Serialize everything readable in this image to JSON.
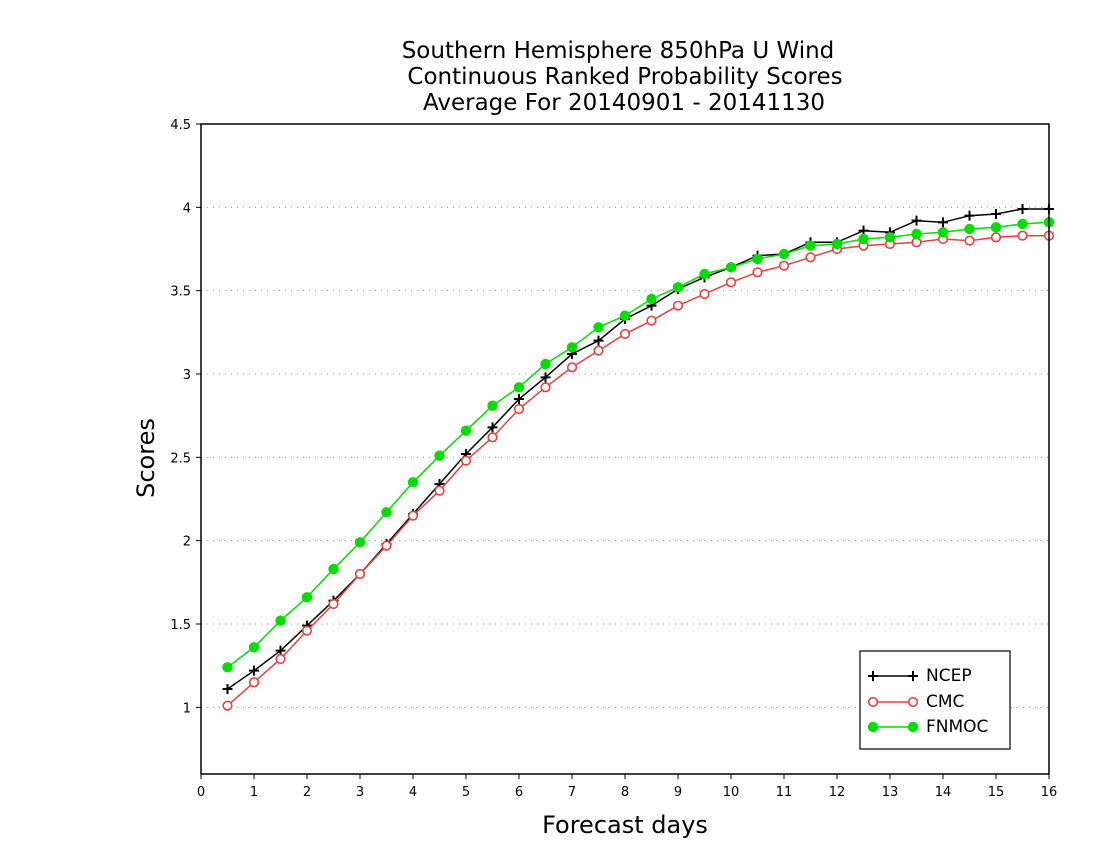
{
  "chart_data": {
    "type": "line",
    "title": [
      "Southern Hemisphere 850hPa U Wind",
      "Continuous Ranked Probability Scores",
      "Average For 20140901 - 20141130"
    ],
    "xlabel": "Forecast days",
    "ylabel": "Scores",
    "xlim": [
      0,
      16
    ],
    "ylim": [
      0.6,
      4.5
    ],
    "x_ticks": [
      "0",
      "1",
      "2",
      "3",
      "4",
      "5",
      "6",
      "7",
      "8",
      "9",
      "10",
      "11",
      "12",
      "13",
      "14",
      "15",
      "16"
    ],
    "y_ticks": [
      "1",
      "1.5",
      "2",
      "2.5",
      "3",
      "3.5",
      "4",
      "4.5"
    ],
    "grid": "horizontal dotted",
    "legend_position": "bottom-right",
    "x": [
      0.5,
      1,
      1.5,
      2,
      2.5,
      3,
      3.5,
      4,
      4.5,
      5,
      5.5,
      6,
      6.5,
      7,
      7.5,
      8,
      8.5,
      9,
      9.5,
      10,
      10.5,
      11,
      11.5,
      12,
      12.5,
      13,
      13.5,
      14,
      14.5,
      15,
      15.5,
      16
    ],
    "series": [
      {
        "name": "NCEP",
        "color": "#000000",
        "marker": "plus",
        "values": [
          1.11,
          1.22,
          1.34,
          1.49,
          1.64,
          1.8,
          1.98,
          2.16,
          2.34,
          2.52,
          2.68,
          2.85,
          2.98,
          3.12,
          3.2,
          3.33,
          3.41,
          3.51,
          3.58,
          3.64,
          3.71,
          3.72,
          3.79,
          3.79,
          3.86,
          3.85,
          3.92,
          3.91,
          3.95,
          3.96,
          3.99,
          3.99
        ]
      },
      {
        "name": "CMC",
        "color": "#e64040",
        "marker": "open-circle",
        "values": [
          1.01,
          1.15,
          1.29,
          1.46,
          1.62,
          1.8,
          1.97,
          2.15,
          2.3,
          2.48,
          2.62,
          2.79,
          2.92,
          3.04,
          3.14,
          3.24,
          3.32,
          3.41,
          3.48,
          3.55,
          3.61,
          3.65,
          3.7,
          3.75,
          3.77,
          3.78,
          3.79,
          3.81,
          3.8,
          3.82,
          3.83,
          3.83
        ]
      },
      {
        "name": "FNMOC",
        "color": "#00dd00",
        "marker": "filled-circle",
        "values": [
          1.24,
          1.36,
          1.52,
          1.66,
          1.83,
          1.99,
          2.17,
          2.35,
          2.51,
          2.66,
          2.81,
          2.92,
          3.06,
          3.16,
          3.28,
          3.35,
          3.45,
          3.52,
          3.6,
          3.64,
          3.69,
          3.72,
          3.77,
          3.78,
          3.81,
          3.82,
          3.84,
          3.85,
          3.87,
          3.88,
          3.9,
          3.91
        ]
      }
    ]
  }
}
